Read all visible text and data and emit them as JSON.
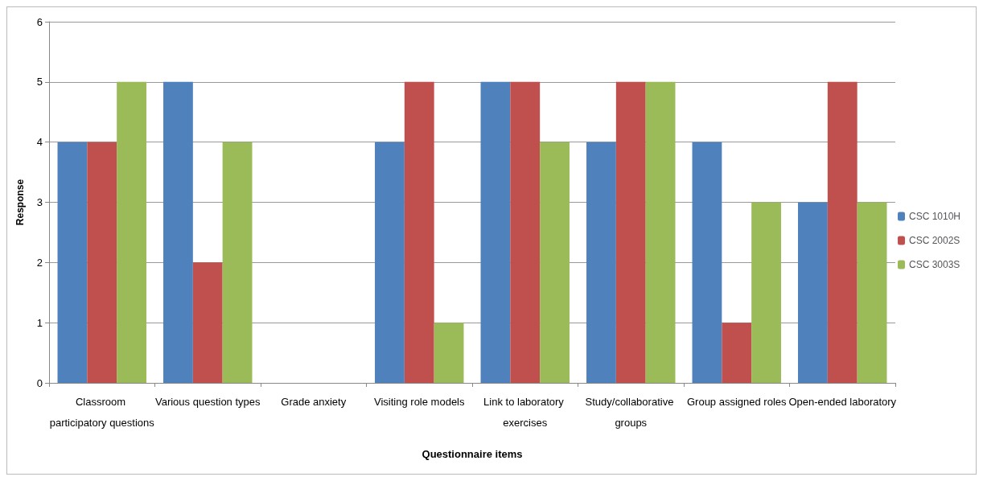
{
  "chart_data": {
    "type": "bar",
    "xlabel": "Questionnaire items",
    "ylabel": "Response",
    "categories": [
      "Classroom participatory questions",
      "Various question types",
      "Grade anxiety",
      "Visiting role models",
      "Link to laboratory exercises",
      "Study/collaborative groups",
      "Group assigned roles",
      "Open-ended laboratory"
    ],
    "series": [
      {
        "name": "CSC 1010H",
        "color": "#4f81bd",
        "values": [
          4,
          5,
          0,
          4,
          5,
          4,
          4,
          3
        ]
      },
      {
        "name": "CSC 2002S",
        "color": "#c0504d",
        "values": [
          4,
          2,
          0,
          5,
          5,
          5,
          1,
          5
        ]
      },
      {
        "name": "CSC 3003S",
        "color": "#9bbb59",
        "values": [
          5,
          4,
          0,
          1,
          4,
          5,
          3,
          3
        ]
      }
    ],
    "ylim": [
      0,
      6
    ],
    "yticks": [
      0,
      1,
      2,
      3,
      4,
      5,
      6
    ],
    "grid": "y",
    "legend": "right"
  }
}
